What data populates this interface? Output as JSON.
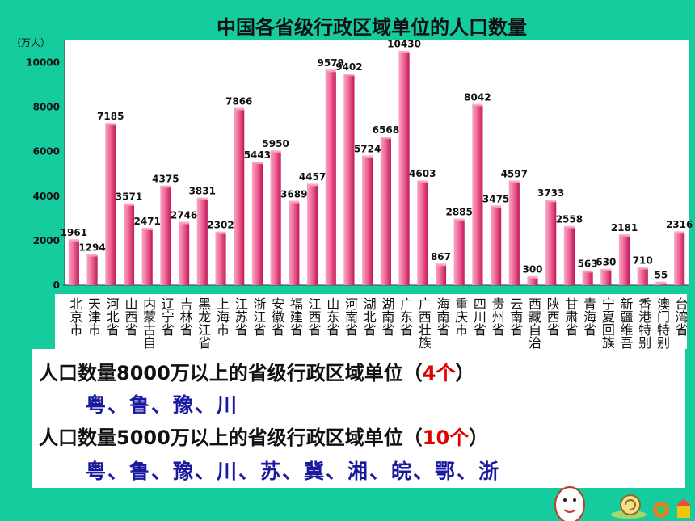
{
  "title": "中国各省级行政区域单位的人口数量",
  "unit_label": "（万人）",
  "chart_data": {
    "type": "bar",
    "title": "中国各省级行政区域单位的人口数量",
    "ylabel": "（万人）",
    "ylim": [
      0,
      11000
    ],
    "yticks": [
      0,
      2000,
      4000,
      6000,
      8000,
      10000
    ],
    "categories": [
      "北京市",
      "天津市",
      "河北省",
      "山西省",
      "内蒙古自",
      "辽宁省",
      "吉林省",
      "黑龙江省",
      "上海市",
      "江苏省",
      "浙江省",
      "安徽省",
      "福建省",
      "江西省",
      "山东省",
      "河南省",
      "湖北省",
      "湖南省",
      "广东省",
      "广西壮族",
      "海南省",
      "重庆市",
      "四川省",
      "贵州省",
      "云南省",
      "西藏自治",
      "陕西省",
      "甘肃省",
      "青海省",
      "宁夏回族",
      "新疆维吾",
      "香港特别",
      "澳门特别",
      "台湾省"
    ],
    "values": [
      1961,
      1294,
      7185,
      3571,
      2471,
      4375,
      2746,
      3831,
      2302,
      7866,
      5443,
      5950,
      3689,
      4457,
      9579,
      9402,
      5724,
      6568,
      10430,
      4603,
      867,
      2885,
      8042,
      3475,
      4597,
      300,
      3733,
      2558,
      563,
      630,
      2181,
      710,
      55,
      2316
    ],
    "bar_color": "#f06a9a",
    "grid": false
  },
  "info": {
    "line1_prefix": "人口数量8000万以上的省级行政区域单位（",
    "line1_count": "4个",
    "line1_suffix": "）",
    "line1_provinces": "粤、鲁、豫、川",
    "line2_prefix": "人口数量5000万以上的省级行政区域单位（",
    "line2_count": "10个",
    "line2_suffix": "）",
    "line2_provinces": "粤、鲁、豫、川、苏、冀、湘、皖、鄂、浙"
  },
  "decoration": {
    "icons": [
      "cartoon-character-icon",
      "snail-icon",
      "globe-icon",
      "house-icon"
    ]
  }
}
